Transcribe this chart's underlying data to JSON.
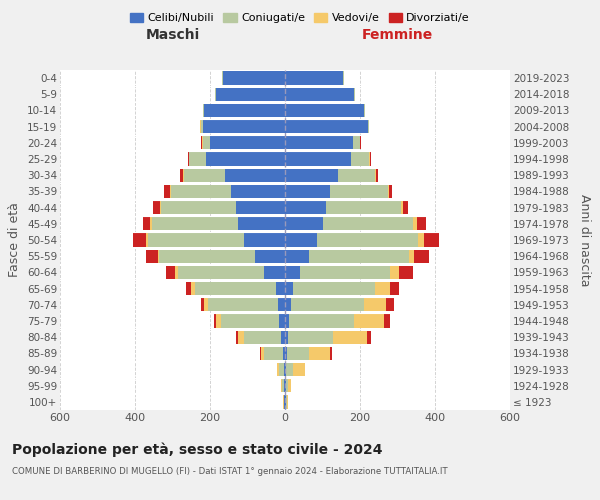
{
  "age_groups": [
    "100+",
    "95-99",
    "90-94",
    "85-89",
    "80-84",
    "75-79",
    "70-74",
    "65-69",
    "60-64",
    "55-59",
    "50-54",
    "45-49",
    "40-44",
    "35-39",
    "30-34",
    "25-29",
    "20-24",
    "15-19",
    "10-14",
    "5-9",
    "0-4"
  ],
  "birth_years": [
    "≤ 1923",
    "1924-1928",
    "1929-1933",
    "1934-1938",
    "1939-1943",
    "1944-1948",
    "1949-1953",
    "1954-1958",
    "1959-1963",
    "1964-1968",
    "1969-1973",
    "1974-1978",
    "1979-1983",
    "1984-1988",
    "1989-1993",
    "1994-1998",
    "1999-2003",
    "2004-2008",
    "2009-2013",
    "2014-2018",
    "2019-2023"
  ],
  "male": {
    "celibi": [
      2,
      2,
      2,
      5,
      10,
      15,
      20,
      25,
      55,
      80,
      110,
      125,
      130,
      145,
      160,
      210,
      200,
      220,
      215,
      185,
      165
    ],
    "coniugati": [
      2,
      5,
      15,
      50,
      100,
      155,
      185,
      215,
      230,
      255,
      255,
      230,
      200,
      160,
      110,
      45,
      20,
      5,
      3,
      2,
      2
    ],
    "vedovi": [
      1,
      3,
      5,
      10,
      15,
      15,
      10,
      10,
      8,
      5,
      5,
      5,
      3,
      3,
      2,
      2,
      1,
      1,
      0,
      0,
      0
    ],
    "divorziati": [
      0,
      0,
      0,
      2,
      5,
      5,
      8,
      15,
      25,
      30,
      35,
      18,
      18,
      15,
      8,
      3,
      2,
      1,
      0,
      0,
      0
    ]
  },
  "female": {
    "nubili": [
      2,
      2,
      2,
      5,
      8,
      10,
      15,
      20,
      40,
      65,
      85,
      100,
      110,
      120,
      140,
      175,
      180,
      220,
      210,
      185,
      155
    ],
    "coniugate": [
      2,
      5,
      20,
      60,
      120,
      175,
      195,
      220,
      240,
      265,
      270,
      240,
      200,
      155,
      100,
      50,
      20,
      5,
      3,
      2,
      2
    ],
    "vedove": [
      3,
      10,
      30,
      55,
      90,
      80,
      60,
      40,
      25,
      15,
      15,
      12,
      5,
      3,
      2,
      2,
      1,
      0,
      0,
      0,
      0
    ],
    "divorziate": [
      0,
      0,
      2,
      5,
      10,
      15,
      20,
      25,
      35,
      40,
      40,
      25,
      12,
      8,
      5,
      2,
      1,
      0,
      0,
      0,
      0
    ]
  },
  "colors": {
    "celibi": "#4472c4",
    "coniugati": "#b8c9a0",
    "vedovi": "#f5c96a",
    "divorziati": "#cc2222"
  },
  "xlim": 600,
  "title": "Popolazione per età, sesso e stato civile - 2024",
  "subtitle": "COMUNE DI BARBERINO DI MUGELLO (FI) - Dati ISTAT 1° gennaio 2024 - Elaborazione TUTTAITALIA.IT",
  "xlabel_left": "Maschi",
  "xlabel_right": "Femmine",
  "ylabel_left": "Fasce di età",
  "ylabel_right": "Anni di nascita",
  "legend_labels": [
    "Celibi/Nubili",
    "Coniugati/e",
    "Vedovi/e",
    "Divorziati/e"
  ],
  "bg_color": "#f0f0f0",
  "plot_bg": "#ffffff"
}
